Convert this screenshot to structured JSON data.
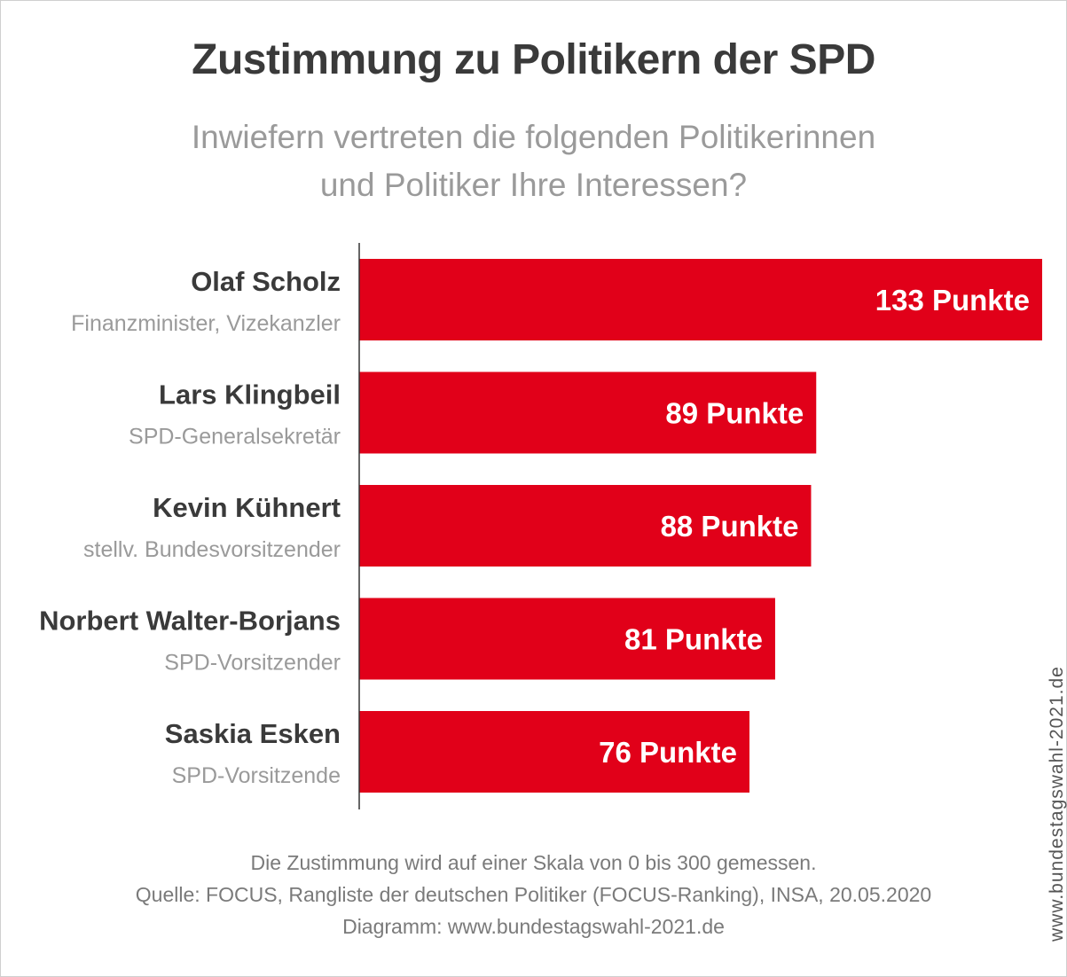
{
  "title": "Zustimmung zu Politikern der SPD",
  "subtitle": [
    "Inwiefern vertreten die folgenden Politikerinnen",
    "und Politiker Ihre Interessen?"
  ],
  "footer": [
    "Die Zustimmung wird auf einer Skala von 0 bis 300 gemessen.",
    "Quelle: FOCUS, Rangliste der deutschen Politiker (FOCUS-Ranking), INSA, 20.05.2020",
    "Diagramm: www.bundestagswahl-2021.de"
  ],
  "watermark": "www.bundestagswahl-2021.de",
  "colors": {
    "bar": "#e10019",
    "name": "#3a3a3a",
    "role": "#9a9a9a",
    "bar_label": "#ffffff",
    "axis": "#333333"
  },
  "chart_data": {
    "type": "bar",
    "orientation": "horizontal",
    "categories": [
      "Olaf Scholz",
      "Lars Klingbeil",
      "Kevin Kühnert",
      "Norbert Walter-Borjans",
      "Saskia Esken"
    ],
    "roles": [
      "Finanzminister, Vizekanzler",
      "SPD-Generalsekretär",
      "stellv. Bundesvorsitzender",
      "SPD-Vorsitzender",
      "SPD-Vorsitzende"
    ],
    "values": [
      133,
      89,
      88,
      81,
      76
    ],
    "value_labels": [
      "133 Punkte",
      "89 Punkte",
      "88 Punkte",
      "81 Punkte",
      "76 Punkte"
    ],
    "xlim": [
      0,
      133
    ]
  }
}
